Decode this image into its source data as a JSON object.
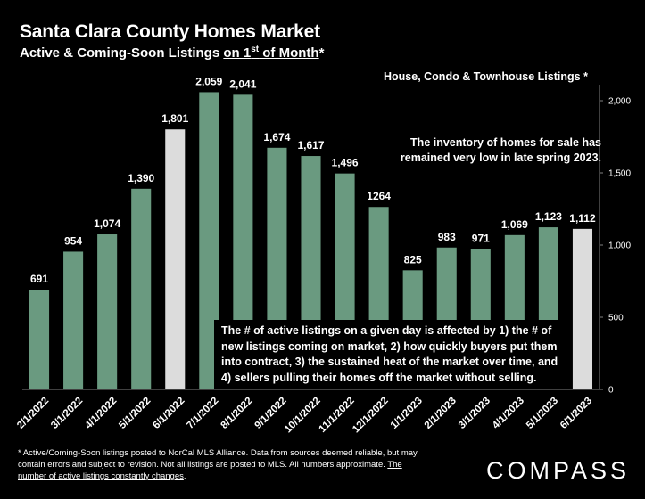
{
  "header": {
    "title": "Santa Clara County Homes Market",
    "subtitle_prefix": "Active & Coming-Soon Listings ",
    "subtitle_underlined": "on 1",
    "subtitle_sup": "st",
    "subtitle_underlined_2": " of Month",
    "subtitle_suffix": "*"
  },
  "legend_text": "House, Condo & Townhouse Listings *",
  "annotations": {
    "top": "The inventory of homes for sale has remained very low in late spring 2023.",
    "box": "The # of active listings on a given day is affected by 1) the # of new listings coming on market, 2) how quickly buyers put them into contract, 3) the sustained heat of the market over time, and 4) sellers pulling their homes off the market without selling."
  },
  "footnote": {
    "text": "* Active/Coming-Soon listings posted to NorCal MLS Alliance.  Data from sources deemed reliable, but may contain errors and subject to revision.  Not all listings are posted to MLS. All numbers approximate. ",
    "underlined": "The number of active listings constantly changes",
    "end": "."
  },
  "logo": "COMPASS",
  "colors": {
    "background": "#000000",
    "bar": "#6a9a80",
    "bar_highlight": "#dcdcdc",
    "axis": "#7f7f7f",
    "text": "#ffffff"
  },
  "chart_data": {
    "type": "bar",
    "categories": [
      "2/1/2022",
      "3/1/2022",
      "4/1/2022",
      "5/1/2022",
      "6/1/2022",
      "7/1/2022",
      "8/1/2022",
      "9/1/2022",
      "10/1/2022",
      "11/1/2022",
      "12/1/2022",
      "1/1/2023",
      "2/1/2023",
      "3/1/2023",
      "4/1/2023",
      "5/1/2023",
      "6/1/2023"
    ],
    "values": [
      691,
      954,
      1074,
      1390,
      1801,
      2059,
      2041,
      1674,
      1617,
      1496,
      1264,
      825,
      983,
      971,
      1069,
      1123,
      1112
    ],
    "value_labels": [
      "691",
      "954",
      "1,074",
      "1,390",
      "1,801",
      "2,059",
      "2,041",
      "1,674",
      "1,617",
      "1,496",
      "1264",
      "825",
      "983",
      "971",
      "1,069",
      "1,123",
      "1,112"
    ],
    "highlighted": [
      "6/1/2022",
      "6/1/2023"
    ],
    "ylim": [
      0,
      2100
    ],
    "yticks": [
      0,
      500,
      1000,
      1500,
      2000
    ],
    "ytick_labels": [
      "0",
      "500",
      "1,000",
      "1,500",
      "2,000"
    ],
    "y_axis_side": "right",
    "grid": false,
    "xlabel": "",
    "ylabel": ""
  }
}
